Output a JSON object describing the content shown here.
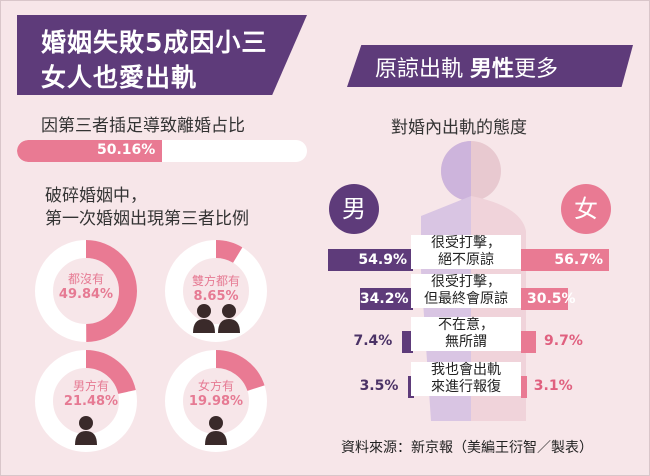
{
  "header": {
    "title_line1": "婚姻失敗5成因小三",
    "title_line2": "女人也愛出軌",
    "right_title_pre": "原諒出軌",
    "right_title_bold": "男性",
    "right_title_post": "更多"
  },
  "divorce_section": {
    "title": "因第三者插足導致離婚占比",
    "value_text": "50.16%",
    "value": 50.16
  },
  "broken_section": {
    "title_line1": "破碎婚姻中，",
    "title_line2": "第一次婚姻出現第三者比例"
  },
  "attitude_section": {
    "title": "對婚內出軌的態度",
    "male_label": "男",
    "female_label": "女"
  },
  "source": "資料來源：新京報（美編王衍智／製表）",
  "colors": {
    "purple": "#5e3b7a",
    "pink": "#e97a93",
    "light_pink": "#f5c9d3",
    "background": "#f7e6e9"
  },
  "chart_data": [
    {
      "type": "bar",
      "title": "因第三者插足導致離婚占比",
      "categories": [
        "因第三者插足導致離婚"
      ],
      "values": [
        50.16
      ],
      "ylim": [
        0,
        100
      ]
    },
    {
      "type": "pie",
      "title": "破碎婚姻中，第一次婚姻出現第三者比例",
      "categories": [
        "都沒有",
        "雙方都有",
        "男方有",
        "女方有"
      ],
      "values": [
        49.84,
        8.65,
        21.48,
        19.98
      ],
      "labels": [
        "49.84%",
        "8.65%",
        "21.48%",
        "19.98%"
      ]
    },
    {
      "type": "bar",
      "title": "對婚內出軌的態度",
      "categories": [
        "很受打擊，絕不原諒",
        "很受打擊，但最終會原諒",
        "不在意，無所謂",
        "我也會出軌來進行報復"
      ],
      "category_lines": [
        [
          "很受打擊，",
          "絕不原諒"
        ],
        [
          "很受打擊，",
          "但最終會原諒"
        ],
        [
          "不在意，",
          "無所謂"
        ],
        [
          "我也會出軌",
          "來進行報復"
        ]
      ],
      "series": [
        {
          "name": "男",
          "values": [
            54.9,
            34.2,
            7.4,
            3.5
          ],
          "labels": [
            "54.9%",
            "34.2%",
            "7.4%",
            "3.5%"
          ]
        },
        {
          "name": "女",
          "values": [
            56.7,
            30.5,
            9.7,
            3.1
          ],
          "labels": [
            "56.7%",
            "30.5%",
            "9.7%",
            "3.1%"
          ]
        }
      ]
    }
  ]
}
